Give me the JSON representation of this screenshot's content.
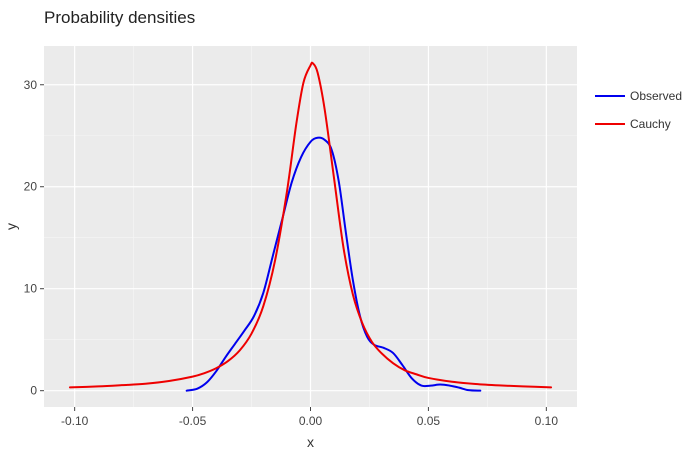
{
  "chart_data": {
    "type": "line",
    "title": "Probability densities",
    "xlabel": "x",
    "ylabel": "y",
    "xlim": [
      -0.113,
      0.113
    ],
    "ylim": [
      -1.6,
      33.8
    ],
    "grid": true,
    "legend_position": "right",
    "x_ticks": [
      {
        "value": -0.1,
        "label": "-0.10"
      },
      {
        "value": -0.05,
        "label": "-0.05"
      },
      {
        "value": 0.0,
        "label": "0.00"
      },
      {
        "value": 0.05,
        "label": "0.05"
      },
      {
        "value": 0.1,
        "label": "0.10"
      }
    ],
    "y_ticks": [
      {
        "value": 0,
        "label": "0"
      },
      {
        "value": 10,
        "label": "10"
      },
      {
        "value": 20,
        "label": "20"
      },
      {
        "value": 30,
        "label": "30"
      }
    ],
    "series": [
      {
        "name": "Observed",
        "color": "#0000ee",
        "points": [
          [
            -0.0525,
            0.0
          ],
          [
            -0.048,
            0.2
          ],
          [
            -0.044,
            0.8
          ],
          [
            -0.04,
            1.9
          ],
          [
            -0.036,
            3.3
          ],
          [
            -0.032,
            4.6
          ],
          [
            -0.028,
            5.9
          ],
          [
            -0.024,
            7.3
          ],
          [
            -0.02,
            9.6
          ],
          [
            -0.016,
            13.2
          ],
          [
            -0.012,
            16.8
          ],
          [
            -0.008,
            20.4
          ],
          [
            -0.004,
            22.9
          ],
          [
            0.0,
            24.4
          ],
          [
            0.003,
            24.8
          ],
          [
            0.006,
            24.6
          ],
          [
            0.009,
            23.6
          ],
          [
            0.012,
            20.5
          ],
          [
            0.015,
            15.5
          ],
          [
            0.018,
            10.8
          ],
          [
            0.021,
            7.3
          ],
          [
            0.024,
            5.3
          ],
          [
            0.027,
            4.5
          ],
          [
            0.031,
            4.2
          ],
          [
            0.035,
            3.7
          ],
          [
            0.039,
            2.5
          ],
          [
            0.043,
            1.2
          ],
          [
            0.047,
            0.5
          ],
          [
            0.051,
            0.5
          ],
          [
            0.055,
            0.6
          ],
          [
            0.059,
            0.5
          ],
          [
            0.063,
            0.3
          ],
          [
            0.067,
            0.05
          ],
          [
            0.072,
            0.0
          ]
        ]
      },
      {
        "name": "Cauchy",
        "color": "#ee0000",
        "points": [
          [
            -0.102,
            0.33
          ],
          [
            -0.09,
            0.42
          ],
          [
            -0.08,
            0.54
          ],
          [
            -0.07,
            0.68
          ],
          [
            -0.06,
            0.95
          ],
          [
            -0.05,
            1.38
          ],
          [
            -0.045,
            1.72
          ],
          [
            -0.04,
            2.2
          ],
          [
            -0.035,
            2.9
          ],
          [
            -0.03,
            3.95
          ],
          [
            -0.025,
            5.6
          ],
          [
            -0.02,
            8.3
          ],
          [
            -0.015,
            12.8
          ],
          [
            -0.01,
            19.5
          ],
          [
            -0.006,
            26.2
          ],
          [
            -0.003,
            30.2
          ],
          [
            0.0,
            31.9
          ],
          [
            0.001,
            32.1
          ],
          [
            0.003,
            31.2
          ],
          [
            0.006,
            27.6
          ],
          [
            0.01,
            20.8
          ],
          [
            0.014,
            14.0
          ],
          [
            0.018,
            9.4
          ],
          [
            0.022,
            6.6
          ],
          [
            0.026,
            4.8
          ],
          [
            0.03,
            3.7
          ],
          [
            0.035,
            2.7
          ],
          [
            0.04,
            2.0
          ],
          [
            0.045,
            1.6
          ],
          [
            0.05,
            1.25
          ],
          [
            0.06,
            0.88
          ],
          [
            0.07,
            0.66
          ],
          [
            0.08,
            0.52
          ],
          [
            0.09,
            0.42
          ],
          [
            0.102,
            0.33
          ]
        ]
      }
    ]
  }
}
